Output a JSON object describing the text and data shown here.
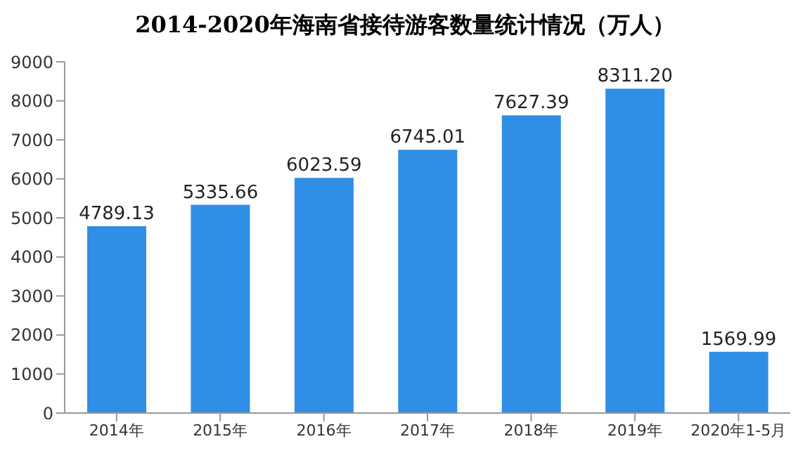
{
  "chart_data": {
    "type": "bar",
    "title": "2014-2020年海南省接待游客数量统计情况（万人）",
    "categories": [
      "2014年",
      "2015年",
      "2016年",
      "2017年",
      "2018年",
      "2019年",
      "2020年1-5月"
    ],
    "values": [
      4789.13,
      5335.66,
      6023.59,
      6745.01,
      7627.39,
      8311.2,
      1569.99
    ],
    "value_labels": [
      "4789.13",
      "5335.66",
      "6023.59",
      "6745.01",
      "7627.39",
      "8311.20",
      "1569.99"
    ],
    "color": "#2f8ee5",
    "ylim": [
      0,
      9000
    ],
    "yticks": [
      0,
      1000,
      2000,
      3000,
      4000,
      5000,
      6000,
      7000,
      8000,
      9000
    ],
    "grid": false
  }
}
